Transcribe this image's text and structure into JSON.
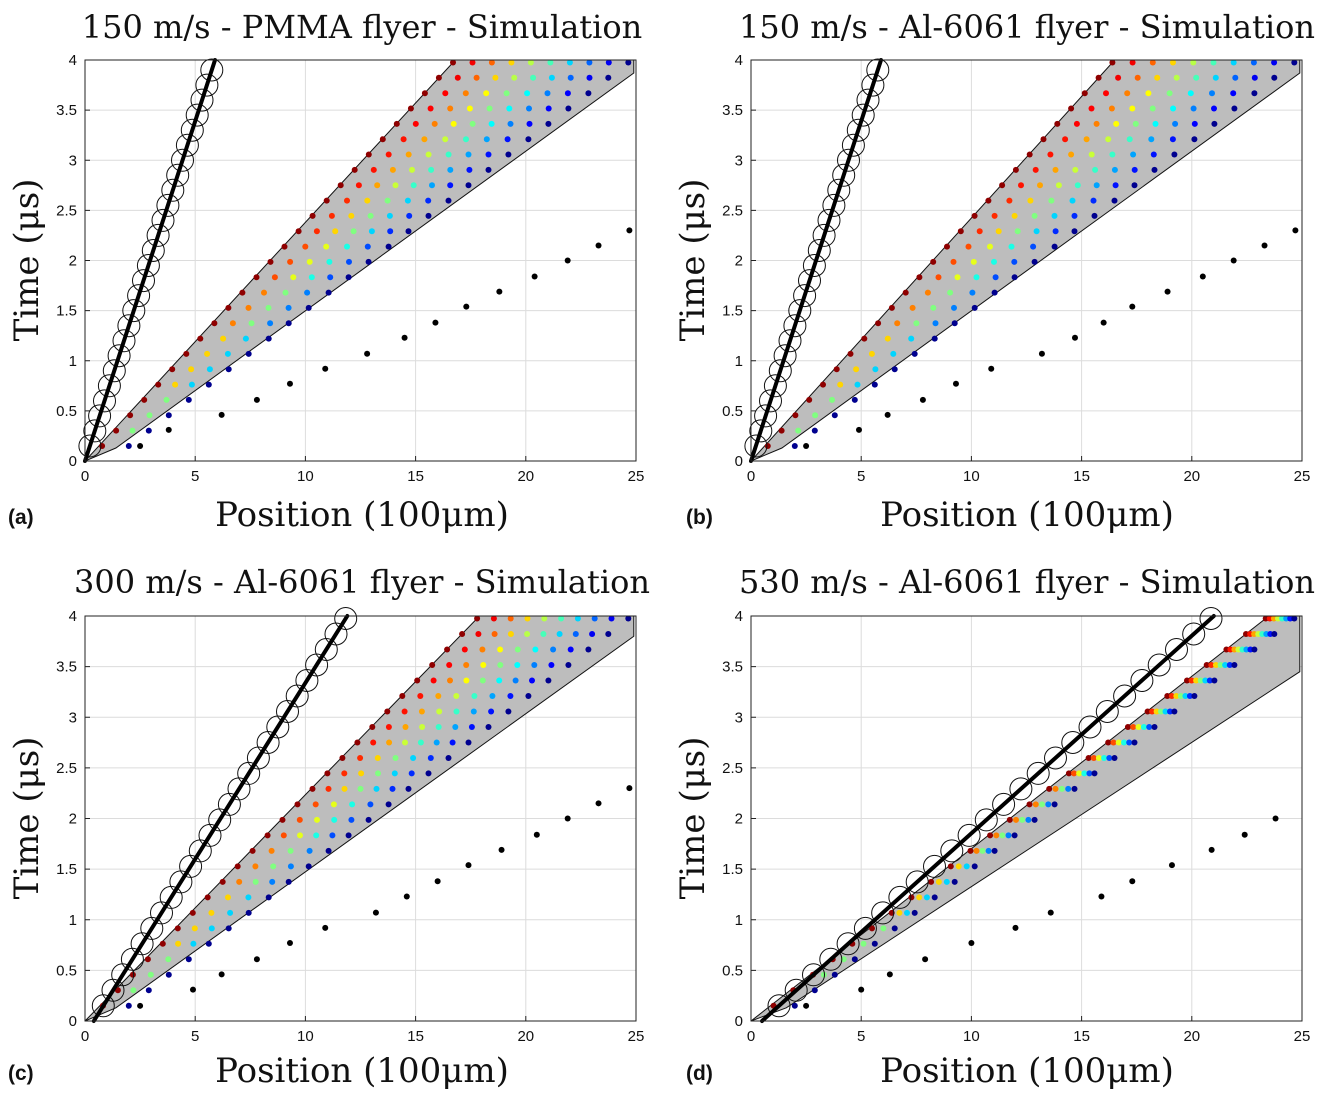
{
  "chart_data": [
    {
      "panel": "(a)",
      "type": "scatter",
      "title": "150 m/s - PMMA flyer - Simulation",
      "xlabel": "Position (100μm)",
      "ylabel": "Time (μs)",
      "xlim": [
        0,
        25
      ],
      "ylim": [
        0,
        4
      ],
      "xticks": [
        0,
        5,
        10,
        15,
        20,
        25
      ],
      "yticks": [
        0,
        0.5,
        1,
        1.5,
        2,
        2.5,
        3,
        3.5,
        4
      ],
      "grid": true,
      "flyer_line": [
        [
          0,
          0
        ],
        [
          5.9,
          4.0
        ]
      ],
      "flyer_circles": {
        "t_start": 0.15,
        "t_step": 0.15,
        "count": 26
      },
      "shaded_region": [
        [
          0,
          0
        ],
        [
          16.8,
          4.0
        ],
        [
          24.9,
          4.0
        ],
        [
          24.9,
          3.87
        ],
        [
          1.4,
          0.13
        ]
      ],
      "wave_points": {
        "t_start": 0.15,
        "t_step": 0.153,
        "count": 26,
        "front_x_at_t4": 16.8,
        "back_x_at_t4": 24.8,
        "points_per_row": 10
      },
      "black_points": [
        [
          2.5,
          0.15
        ],
        [
          3.8,
          0.31
        ],
        [
          6.2,
          0.46
        ],
        [
          7.8,
          0.61
        ],
        [
          9.3,
          0.77
        ],
        [
          10.9,
          0.92
        ],
        [
          12.8,
          1.07
        ],
        [
          14.5,
          1.23
        ],
        [
          15.9,
          1.38
        ],
        [
          17.3,
          1.54
        ],
        [
          18.8,
          1.69
        ],
        [
          20.4,
          1.84
        ],
        [
          21.9,
          2.0
        ],
        [
          23.3,
          2.15
        ],
        [
          24.7,
          2.3
        ]
      ]
    },
    {
      "panel": "(b)",
      "type": "scatter",
      "title": "150 m/s - Al-6061 flyer - Simulation",
      "xlabel": "Position (100μm)",
      "ylabel": "Time (μs)",
      "xlim": [
        0,
        25
      ],
      "ylim": [
        0,
        4
      ],
      "xticks": [
        0,
        5,
        10,
        15,
        20,
        25
      ],
      "yticks": [
        0,
        0.5,
        1,
        1.5,
        2,
        2.5,
        3,
        3.5,
        4
      ],
      "grid": true,
      "flyer_line": [
        [
          0,
          0
        ],
        [
          5.9,
          4.0
        ]
      ],
      "flyer_circles": {
        "t_start": 0.15,
        "t_step": 0.15,
        "count": 26
      },
      "shaded_region": [
        [
          0,
          0
        ],
        [
          16.5,
          4.0
        ],
        [
          24.9,
          4.0
        ],
        [
          24.9,
          3.87
        ],
        [
          1.4,
          0.13
        ]
      ],
      "wave_points": {
        "t_start": 0.15,
        "t_step": 0.153,
        "count": 26,
        "front_x_at_t4": 16.5,
        "back_x_at_t4": 24.8,
        "points_per_row": 10
      },
      "black_points": [
        [
          2.5,
          0.15
        ],
        [
          4.9,
          0.31
        ],
        [
          6.2,
          0.46
        ],
        [
          7.8,
          0.61
        ],
        [
          9.3,
          0.77
        ],
        [
          10.9,
          0.92
        ],
        [
          13.2,
          1.07
        ],
        [
          14.7,
          1.23
        ],
        [
          16.0,
          1.38
        ],
        [
          17.3,
          1.54
        ],
        [
          18.9,
          1.69
        ],
        [
          20.5,
          1.84
        ],
        [
          21.9,
          2.0
        ],
        [
          23.3,
          2.15
        ],
        [
          24.7,
          2.3
        ]
      ]
    },
    {
      "panel": "(c)",
      "type": "scatter",
      "title": "300 m/s - Al-6061 flyer - Simulation",
      "xlabel": "Position (100μm)",
      "ylabel": "Time (μs)",
      "xlim": [
        0,
        25
      ],
      "ylim": [
        0,
        4
      ],
      "xticks": [
        0,
        5,
        10,
        15,
        20,
        25
      ],
      "yticks": [
        0,
        0.5,
        1,
        1.5,
        2,
        2.5,
        3,
        3.5,
        4
      ],
      "grid": true,
      "flyer_line": [
        [
          0.4,
          0
        ],
        [
          11.9,
          4.0
        ]
      ],
      "flyer_circles": {
        "t_start": 0.15,
        "t_step": 0.153,
        "count": 26
      },
      "shaded_region": [
        [
          0,
          0
        ],
        [
          17.9,
          4.0
        ],
        [
          24.9,
          4.0
        ],
        [
          24.9,
          3.8
        ],
        [
          1.4,
          0.13
        ]
      ],
      "wave_points": {
        "t_start": 0.15,
        "t_step": 0.153,
        "count": 26,
        "front_x_at_t4": 17.9,
        "back_x_at_t4": 24.8,
        "points_per_row": 10
      },
      "black_points": [
        [
          2.5,
          0.15
        ],
        [
          4.9,
          0.31
        ],
        [
          6.2,
          0.46
        ],
        [
          7.8,
          0.61
        ],
        [
          9.3,
          0.77
        ],
        [
          10.9,
          0.92
        ],
        [
          13.2,
          1.07
        ],
        [
          14.6,
          1.23
        ],
        [
          16.0,
          1.38
        ],
        [
          17.4,
          1.54
        ],
        [
          18.9,
          1.69
        ],
        [
          20.5,
          1.84
        ],
        [
          21.9,
          2.0
        ],
        [
          23.3,
          2.15
        ],
        [
          24.7,
          2.3
        ]
      ]
    },
    {
      "panel": "(d)",
      "type": "scatter",
      "title": "530 m/s - Al-6061 flyer - Simulation",
      "xlabel": "Position (100μm)",
      "ylabel": "Time (μs)",
      "xlim": [
        0,
        25
      ],
      "ylim": [
        0,
        4
      ],
      "xticks": [
        0,
        5,
        10,
        15,
        20,
        25
      ],
      "yticks": [
        0,
        0.5,
        1,
        1.5,
        2,
        2.5,
        3,
        3.5,
        4
      ],
      "grid": true,
      "flyer_line": [
        [
          0.5,
          0
        ],
        [
          21.0,
          4.0
        ]
      ],
      "flyer_circles": {
        "t_start": 0.15,
        "t_step": 0.153,
        "count": 26
      },
      "shaded_region": [
        [
          0,
          0
        ],
        [
          23.5,
          4.0
        ],
        [
          24.9,
          4.0
        ],
        [
          24.9,
          3.45
        ],
        [
          1.6,
          0.13
        ]
      ],
      "wave_points": {
        "t_start": 0.15,
        "t_step": 0.153,
        "count": 26,
        "front_x_at_t4": 23.5,
        "back_x_at_t4": 24.8,
        "points_per_row": 8
      },
      "black_points": [
        [
          2.5,
          0.15
        ],
        [
          5.0,
          0.31
        ],
        [
          6.3,
          0.46
        ],
        [
          7.9,
          0.61
        ],
        [
          10.0,
          0.77
        ],
        [
          12.0,
          0.92
        ],
        [
          13.6,
          1.07
        ],
        [
          15.9,
          1.23
        ],
        [
          17.3,
          1.38
        ],
        [
          19.1,
          1.54
        ],
        [
          20.9,
          1.69
        ],
        [
          22.4,
          1.84
        ],
        [
          23.8,
          2.0
        ]
      ]
    }
  ],
  "colormap": [
    "#00008f",
    "#0000ff",
    "#0080ff",
    "#00ffff",
    "#80ff80",
    "#ffff00",
    "#ff8000",
    "#ff0000",
    "#8f0000"
  ]
}
